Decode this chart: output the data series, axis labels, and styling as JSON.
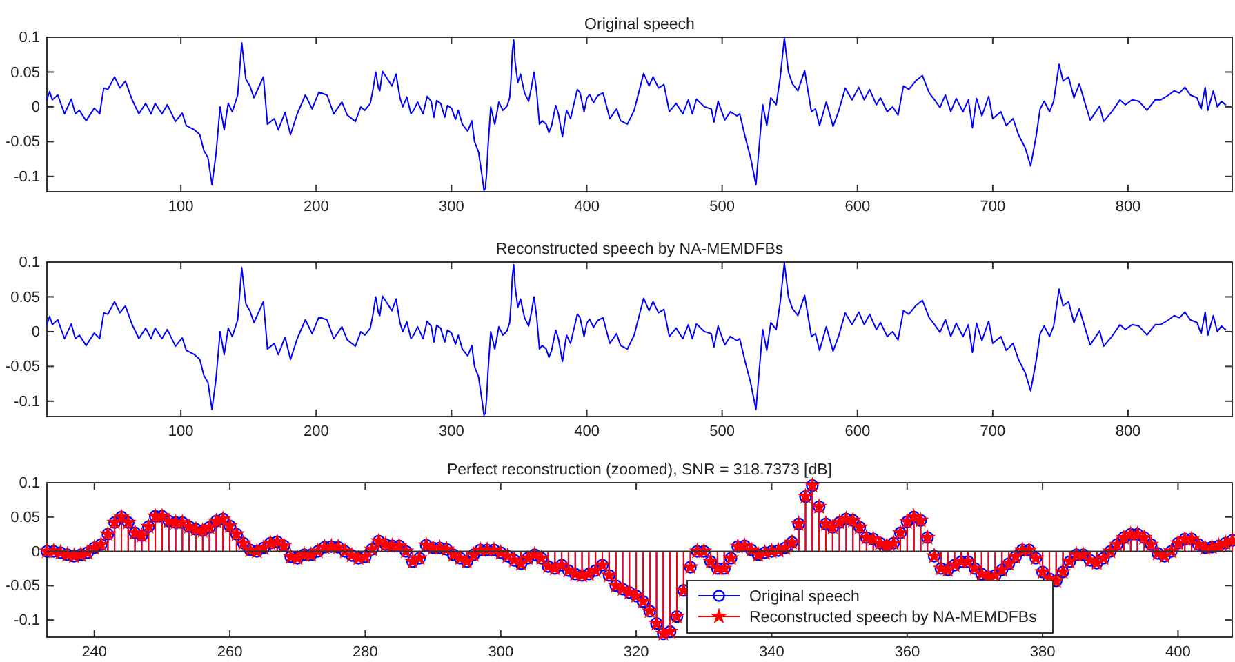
{
  "chart_data": [
    {
      "type": "line",
      "title": "Original speech",
      "xlim": [
        1,
        877
      ],
      "ylim": [
        -0.122,
        0.1
      ],
      "xticks": [
        100,
        200,
        300,
        400,
        500,
        600,
        700,
        800
      ],
      "yticks": [
        -0.1,
        -0.05,
        0,
        0.05,
        0.1
      ],
      "x": [
        1,
        3,
        5,
        9,
        14,
        19,
        22,
        25,
        30,
        36,
        40,
        43,
        46,
        51,
        55,
        59,
        64,
        69,
        74,
        78,
        81,
        86,
        90,
        96,
        101,
        104,
        110,
        114,
        117,
        120,
        123,
        126,
        129,
        132,
        135,
        138,
        142,
        145,
        148,
        151,
        154,
        161,
        164,
        169,
        172,
        177,
        181,
        186,
        192,
        197,
        202,
        208,
        213,
        219,
        223,
        229,
        233,
        236,
        240,
        242,
        244,
        246,
        247,
        249,
        252,
        256,
        259,
        262,
        264,
        267,
        270,
        272,
        275,
        279,
        282,
        285,
        287,
        289,
        292,
        295,
        297,
        300,
        303,
        305,
        308,
        312,
        315,
        317,
        320,
        323,
        324,
        325,
        326,
        327,
        329,
        332,
        335,
        338,
        341,
        343,
        344,
        345,
        346,
        347,
        349,
        351,
        354,
        357,
        359,
        361,
        363,
        365,
        367,
        370,
        372,
        374,
        377,
        379,
        382,
        385,
        388,
        390,
        393,
        395,
        398,
        400,
        402,
        405,
        408,
        412,
        417,
        422,
        425,
        430,
        435,
        442,
        446,
        449,
        453,
        457,
        461,
        466,
        471,
        475,
        478,
        481,
        487,
        492,
        494,
        497,
        502,
        506,
        511,
        513,
        517,
        521,
        525,
        530,
        533,
        536,
        540,
        543,
        546,
        549,
        552,
        556,
        561,
        566,
        569,
        572,
        577,
        582,
        586,
        591,
        596,
        601,
        605,
        609,
        614,
        617,
        622,
        626,
        630,
        634,
        638,
        643,
        648,
        653,
        657,
        661,
        665,
        669,
        673,
        678,
        682,
        685,
        688,
        692,
        697,
        700,
        706,
        710,
        715,
        719,
        724,
        728,
        732,
        735,
        738,
        742,
        745,
        749,
        752,
        756,
        760,
        764,
        769,
        772,
        779,
        782,
        788,
        794,
        798,
        803,
        808,
        814,
        820,
        824,
        830,
        834,
        838,
        842,
        846,
        851,
        854,
        857,
        859,
        863,
        866,
        869,
        872
      ],
      "series": [
        {
          "color": "#0000ff",
          "values": [
            0.01,
            0.022,
            0.01,
            0.017,
            -0.01,
            0.011,
            -0.01,
            -0.005,
            -0.02,
            -0.002,
            -0.01,
            0.027,
            0.025,
            0.043,
            0.027,
            0.037,
            0.01,
            -0.01,
            0.005,
            -0.01,
            0.005,
            -0.01,
            0.003,
            -0.021,
            -0.009,
            -0.027,
            -0.033,
            -0.04,
            -0.063,
            -0.073,
            -0.112,
            -0.067,
            0,
            -0.033,
            0.005,
            -0.007,
            0.017,
            0.092,
            0.04,
            0.03,
            0.013,
            0.043,
            -0.025,
            -0.017,
            -0.033,
            -0.008,
            -0.04,
            -0.01,
            0.017,
            -0.003,
            0.021,
            0.017,
            -0.01,
            0.007,
            -0.012,
            -0.021,
            0,
            -0.005,
            0.005,
            0.025,
            0.05,
            0.027,
            0.023,
            0.051,
            0.042,
            0.03,
            0.047,
            0.012,
            0,
            0.014,
            -0.01,
            -0.005,
            0.007,
            -0.01,
            0.015,
            0.008,
            -0.015,
            0.009,
            0.005,
            -0.015,
            0.002,
            -0.002,
            -0.018,
            -0.005,
            -0.025,
            -0.035,
            -0.02,
            -0.05,
            -0.065,
            -0.105,
            -0.12,
            -0.117,
            -0.095,
            -0.057,
            0,
            -0.025,
            0.007,
            -0.005,
            0.001,
            0.013,
            0.04,
            0.08,
            0.096,
            0.065,
            0.035,
            0.047,
            0.02,
            0.008,
            0.027,
            0.05,
            0.02,
            -0.025,
            -0.02,
            -0.025,
            -0.037,
            -0.027,
            0.002,
            -0.01,
            -0.043,
            -0.005,
            -0.017,
            0,
            0.025,
            0.02,
            -0.007,
            0.012,
            0.018,
            0.006,
            0.016,
            0.02,
            -0.017,
            -0.003,
            -0.02,
            -0.025,
            -0.005,
            0.048,
            0.03,
            0.043,
            0.027,
            0.032,
            -0.007,
            0.005,
            -0.01,
            0.01,
            -0.01,
            0.011,
            0,
            -0.003,
            -0.022,
            0.008,
            -0.019,
            -0.007,
            -0.013,
            -0.01,
            -0.043,
            -0.073,
            -0.112,
            0.003,
            -0.027,
            0.013,
            0.003,
            0.043,
            0.099,
            0.05,
            0.033,
            0.023,
            0.052,
            -0.007,
            -0.003,
            -0.027,
            0.007,
            -0.028,
            -0.007,
            0.027,
            0.01,
            0.028,
            0.01,
            0.025,
            0.003,
            0.013,
            -0.007,
            0,
            -0.012,
            0.03,
            0.025,
            0.037,
            0.045,
            0.02,
            0.01,
            -0.001,
            0.017,
            -0.007,
            0.012,
            -0.007,
            0.01,
            -0.03,
            0.012,
            -0.013,
            0.015,
            -0.017,
            -0.007,
            -0.027,
            -0.017,
            -0.04,
            -0.059,
            -0.085,
            -0.043,
            -0.003,
            0.008,
            -0.007,
            0.008,
            0.061,
            0.037,
            0.043,
            0.013,
            0.033,
            0,
            -0.019,
            0.001,
            -0.021,
            -0.007,
            0.01,
            0.003,
            0.01,
            0.008,
            -0.005,
            0.01,
            0.01,
            0.017,
            0.023,
            0.02,
            0.028,
            0.017,
            0.013,
            -0.003,
            0.028,
            -0.005,
            0.023,
            0,
            0.008,
            0.003
          ]
        }
      ]
    },
    {
      "type": "line",
      "title": "Reconstructed speech by NA-MEMDFBs",
      "xlim": [
        1,
        877
      ],
      "ylim": [
        -0.122,
        0.1
      ],
      "xticks": [
        100,
        200,
        300,
        400,
        500,
        600,
        700,
        800
      ],
      "yticks": [
        -0.1,
        -0.05,
        0,
        0.05,
        0.1
      ],
      "x": [
        1,
        3,
        5,
        9,
        14,
        19,
        22,
        25,
        30,
        36,
        40,
        43,
        46,
        51,
        55,
        59,
        64,
        69,
        74,
        78,
        81,
        86,
        90,
        96,
        101,
        104,
        110,
        114,
        117,
        120,
        123,
        126,
        129,
        132,
        135,
        138,
        142,
        145,
        148,
        151,
        154,
        161,
        164,
        169,
        172,
        177,
        181,
        186,
        192,
        197,
        202,
        208,
        213,
        219,
        223,
        229,
        233,
        236,
        240,
        242,
        244,
        246,
        247,
        249,
        252,
        256,
        259,
        262,
        264,
        267,
        270,
        272,
        275,
        279,
        282,
        285,
        287,
        289,
        292,
        295,
        297,
        300,
        303,
        305,
        308,
        312,
        315,
        317,
        320,
        323,
        324,
        325,
        326,
        327,
        329,
        332,
        335,
        338,
        341,
        343,
        344,
        345,
        346,
        347,
        349,
        351,
        354,
        357,
        359,
        361,
        363,
        365,
        367,
        370,
        372,
        374,
        377,
        379,
        382,
        385,
        388,
        390,
        393,
        395,
        398,
        400,
        402,
        405,
        408,
        412,
        417,
        422,
        425,
        430,
        435,
        442,
        446,
        449,
        453,
        457,
        461,
        466,
        471,
        475,
        478,
        481,
        487,
        492,
        494,
        497,
        502,
        506,
        511,
        513,
        517,
        521,
        525,
        530,
        533,
        536,
        540,
        543,
        546,
        549,
        552,
        556,
        561,
        566,
        569,
        572,
        577,
        582,
        586,
        591,
        596,
        601,
        605,
        609,
        614,
        617,
        622,
        626,
        630,
        634,
        638,
        643,
        648,
        653,
        657,
        661,
        665,
        669,
        673,
        678,
        682,
        685,
        688,
        692,
        697,
        700,
        706,
        710,
        715,
        719,
        724,
        728,
        732,
        735,
        738,
        742,
        745,
        749,
        752,
        756,
        760,
        764,
        769,
        772,
        779,
        782,
        788,
        794,
        798,
        803,
        808,
        814,
        820,
        824,
        830,
        834,
        838,
        842,
        846,
        851,
        854,
        857,
        859,
        863,
        866,
        869,
        872
      ],
      "series": [
        {
          "color": "#0000ff",
          "values": [
            0.01,
            0.022,
            0.01,
            0.017,
            -0.01,
            0.011,
            -0.01,
            -0.005,
            -0.02,
            -0.002,
            -0.01,
            0.027,
            0.025,
            0.043,
            0.027,
            0.037,
            0.01,
            -0.01,
            0.005,
            -0.01,
            0.005,
            -0.01,
            0.003,
            -0.021,
            -0.009,
            -0.027,
            -0.033,
            -0.04,
            -0.063,
            -0.073,
            -0.112,
            -0.067,
            0,
            -0.033,
            0.005,
            -0.007,
            0.017,
            0.092,
            0.04,
            0.03,
            0.013,
            0.043,
            -0.025,
            -0.017,
            -0.033,
            -0.008,
            -0.04,
            -0.01,
            0.017,
            -0.003,
            0.021,
            0.017,
            -0.01,
            0.007,
            -0.012,
            -0.021,
            0,
            -0.005,
            0.005,
            0.025,
            0.05,
            0.027,
            0.023,
            0.051,
            0.042,
            0.03,
            0.047,
            0.012,
            0,
            0.014,
            -0.01,
            -0.005,
            0.007,
            -0.01,
            0.015,
            0.008,
            -0.015,
            0.009,
            0.005,
            -0.015,
            0.002,
            -0.002,
            -0.018,
            -0.005,
            -0.025,
            -0.035,
            -0.02,
            -0.05,
            -0.065,
            -0.105,
            -0.12,
            -0.117,
            -0.095,
            -0.057,
            0,
            -0.025,
            0.007,
            -0.005,
            0.001,
            0.013,
            0.04,
            0.08,
            0.096,
            0.065,
            0.035,
            0.047,
            0.02,
            0.008,
            0.027,
            0.05,
            0.02,
            -0.025,
            -0.02,
            -0.025,
            -0.037,
            -0.027,
            0.002,
            -0.01,
            -0.043,
            -0.005,
            -0.017,
            0,
            0.025,
            0.02,
            -0.007,
            0.012,
            0.018,
            0.006,
            0.016,
            0.02,
            -0.017,
            -0.003,
            -0.02,
            -0.025,
            -0.005,
            0.048,
            0.03,
            0.043,
            0.027,
            0.032,
            -0.007,
            0.005,
            -0.01,
            0.01,
            -0.01,
            0.011,
            0,
            -0.003,
            -0.022,
            0.008,
            -0.019,
            -0.007,
            -0.013,
            -0.01,
            -0.043,
            -0.073,
            -0.112,
            0.003,
            -0.027,
            0.013,
            0.003,
            0.043,
            0.099,
            0.05,
            0.033,
            0.023,
            0.052,
            -0.007,
            -0.003,
            -0.027,
            0.007,
            -0.028,
            -0.007,
            0.027,
            0.01,
            0.028,
            0.01,
            0.025,
            0.003,
            0.013,
            -0.007,
            0,
            -0.012,
            0.03,
            0.025,
            0.037,
            0.045,
            0.02,
            0.01,
            -0.001,
            0.017,
            -0.007,
            0.012,
            -0.007,
            0.01,
            -0.03,
            0.012,
            -0.013,
            0.015,
            -0.017,
            -0.007,
            -0.027,
            -0.017,
            -0.04,
            -0.059,
            -0.085,
            -0.043,
            -0.003,
            0.008,
            -0.007,
            0.008,
            0.061,
            0.037,
            0.043,
            0.013,
            0.033,
            0,
            -0.019,
            0.001,
            -0.021,
            -0.007,
            0.01,
            0.003,
            0.01,
            0.008,
            -0.005,
            0.01,
            0.01,
            0.017,
            0.023,
            0.02,
            0.028,
            0.017,
            0.013,
            -0.003,
            0.028,
            -0.005,
            0.023,
            0,
            0.008,
            0.003
          ]
        }
      ]
    },
    {
      "type": "lollipop",
      "title": "Perfect reconstruction (zoomed), SNR = 318.7373 [dB]",
      "xlim": [
        233,
        408
      ],
      "ylim": [
        -0.125,
        0.1
      ],
      "xticks": [
        240,
        260,
        280,
        300,
        320,
        340,
        360,
        380,
        400
      ],
      "yticks": [
        -0.1,
        -0.05,
        0,
        0.05,
        0.1
      ],
      "legend": "bottom right",
      "x": [
        233,
        234,
        235,
        236,
        237,
        238,
        239,
        240,
        241,
        242,
        243,
        244,
        245,
        246,
        247,
        248,
        249,
        250,
        251,
        252,
        253,
        254,
        255,
        256,
        257,
        258,
        259,
        260,
        261,
        262,
        263,
        264,
        265,
        266,
        267,
        268,
        269,
        270,
        271,
        272,
        273,
        274,
        275,
        276,
        277,
        278,
        279,
        280,
        281,
        282,
        283,
        284,
        285,
        286,
        287,
        288,
        289,
        290,
        291,
        292,
        293,
        294,
        295,
        296,
        297,
        298,
        299,
        300,
        301,
        302,
        303,
        304,
        305,
        306,
        307,
        308,
        309,
        310,
        311,
        312,
        313,
        314,
        315,
        316,
        317,
        318,
        319,
        320,
        321,
        322,
        323,
        324,
        325,
        326,
        327,
        328,
        329,
        330,
        331,
        332,
        333,
        334,
        335,
        336,
        337,
        338,
        339,
        340,
        341,
        342,
        343,
        344,
        345,
        346,
        347,
        348,
        349,
        350,
        351,
        352,
        353,
        354,
        355,
        356,
        357,
        358,
        359,
        360,
        361,
        362,
        363,
        364,
        365,
        366,
        367,
        368,
        369,
        370,
        371,
        372,
        373,
        374,
        375,
        376,
        377,
        378,
        379,
        380,
        381,
        382,
        383,
        384,
        385,
        386,
        387,
        388,
        389,
        390,
        391,
        392,
        393,
        394,
        395,
        396,
        397,
        398,
        399,
        400,
        401,
        402,
        403,
        404,
        405,
        406,
        407,
        408
      ],
      "series": [
        {
          "name": "Original speech",
          "color": "#0000ff",
          "marker": "circle",
          "values": [
            0,
            0,
            -0.002,
            -0.005,
            -0.007,
            -0.005,
            -0.002,
            0.005,
            0.01,
            0.025,
            0.042,
            0.05,
            0.042,
            0.027,
            0.023,
            0.036,
            0.051,
            0.051,
            0.044,
            0.042,
            0.042,
            0.036,
            0.032,
            0.03,
            0.035,
            0.044,
            0.047,
            0.037,
            0.025,
            0.012,
            0.002,
            0,
            0.005,
            0.012,
            0.014,
            0.008,
            -0.008,
            -0.01,
            -0.005,
            -0.005,
            0,
            0.006,
            0.007,
            0.006,
            0,
            -0.006,
            -0.01,
            -0.008,
            0.003,
            0.015,
            0.01,
            0.008,
            0.008,
            0,
            -0.015,
            -0.01,
            0.009,
            0.005,
            0.005,
            0.003,
            -0.005,
            -0.01,
            -0.015,
            -0.005,
            0.002,
            0.002,
            0.002,
            -0.002,
            -0.007,
            -0.013,
            -0.018,
            -0.01,
            -0.005,
            -0.01,
            -0.022,
            -0.025,
            -0.02,
            -0.028,
            -0.033,
            -0.035,
            -0.033,
            -0.028,
            -0.02,
            -0.035,
            -0.05,
            -0.055,
            -0.06,
            -0.065,
            -0.073,
            -0.087,
            -0.105,
            -0.12,
            -0.117,
            -0.095,
            -0.057,
            -0.023,
            0,
            0,
            -0.015,
            -0.025,
            -0.025,
            -0.01,
            0.007,
            0.008,
            0.002,
            -0.005,
            -0.002,
            0,
            0.001,
            0.005,
            0.013,
            0.04,
            0.08,
            0.096,
            0.065,
            0.04,
            0.035,
            0.042,
            0.047,
            0.045,
            0.035,
            0.02,
            0.018,
            0.012,
            0.008,
            0.012,
            0.027,
            0.043,
            0.05,
            0.045,
            0.02,
            -0.007,
            -0.025,
            -0.027,
            -0.02,
            -0.015,
            -0.015,
            -0.025,
            -0.033,
            -0.037,
            -0.035,
            -0.027,
            -0.018,
            -0.008,
            0.002,
            0.002,
            -0.01,
            -0.03,
            -0.04,
            -0.043,
            -0.03,
            -0.015,
            -0.005,
            -0.005,
            -0.013,
            -0.017,
            -0.01,
            0,
            0.01,
            0.02,
            0.025,
            0.025,
            0.02,
            0.01,
            -0.003,
            -0.007,
            0,
            0.012,
            0.018,
            0.018,
            0.01,
            0.005,
            0.006,
            0.008,
            0.012,
            0.016
          ]
        },
        {
          "name": "Reconstructed speech by NA-MEMDFBs",
          "color": "#ff0000",
          "marker": "star",
          "values": [
            0,
            0,
            -0.002,
            -0.005,
            -0.007,
            -0.005,
            -0.002,
            0.005,
            0.01,
            0.025,
            0.042,
            0.05,
            0.042,
            0.027,
            0.023,
            0.036,
            0.051,
            0.051,
            0.044,
            0.042,
            0.042,
            0.036,
            0.032,
            0.03,
            0.035,
            0.044,
            0.047,
            0.037,
            0.025,
            0.012,
            0.002,
            0,
            0.005,
            0.012,
            0.014,
            0.008,
            -0.008,
            -0.01,
            -0.005,
            -0.005,
            0,
            0.006,
            0.007,
            0.006,
            0,
            -0.006,
            -0.01,
            -0.008,
            0.003,
            0.015,
            0.01,
            0.008,
            0.008,
            0,
            -0.015,
            -0.01,
            0.009,
            0.005,
            0.005,
            0.003,
            -0.005,
            -0.01,
            -0.015,
            -0.005,
            0.002,
            0.002,
            0.002,
            -0.002,
            -0.007,
            -0.013,
            -0.018,
            -0.01,
            -0.005,
            -0.01,
            -0.022,
            -0.025,
            -0.02,
            -0.028,
            -0.033,
            -0.035,
            -0.033,
            -0.028,
            -0.02,
            -0.035,
            -0.05,
            -0.055,
            -0.06,
            -0.065,
            -0.073,
            -0.087,
            -0.105,
            -0.12,
            -0.117,
            -0.095,
            -0.057,
            -0.023,
            0,
            0,
            -0.015,
            -0.025,
            -0.025,
            -0.01,
            0.007,
            0.008,
            0.002,
            -0.005,
            -0.002,
            0,
            0.001,
            0.005,
            0.013,
            0.04,
            0.08,
            0.096,
            0.065,
            0.04,
            0.035,
            0.042,
            0.047,
            0.045,
            0.035,
            0.02,
            0.018,
            0.012,
            0.008,
            0.012,
            0.027,
            0.043,
            0.05,
            0.045,
            0.02,
            -0.007,
            -0.025,
            -0.027,
            -0.02,
            -0.015,
            -0.015,
            -0.025,
            -0.033,
            -0.037,
            -0.035,
            -0.027,
            -0.018,
            -0.008,
            0.002,
            0.002,
            -0.01,
            -0.03,
            -0.04,
            -0.043,
            -0.03,
            -0.015,
            -0.005,
            -0.005,
            -0.013,
            -0.017,
            -0.01,
            0,
            0.01,
            0.02,
            0.025,
            0.025,
            0.02,
            0.01,
            -0.003,
            -0.007,
            0,
            0.012,
            0.018,
            0.018,
            0.01,
            0.005,
            0.006,
            0.008,
            0.012,
            0.016
          ]
        }
      ]
    }
  ]
}
